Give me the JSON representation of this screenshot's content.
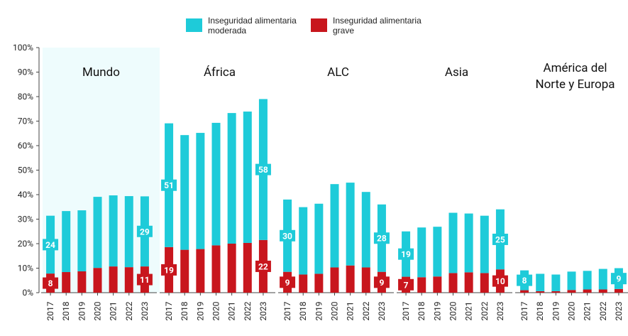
{
  "chart_data": {
    "type": "bar",
    "stacked": true,
    "ylim": [
      0,
      100
    ],
    "yticks": [
      {
        "value": 0,
        "label": "0%"
      },
      {
        "value": 10,
        "label": "10%"
      },
      {
        "value": 20,
        "label": "20%"
      },
      {
        "value": 30,
        "label": "30%"
      },
      {
        "value": 40,
        "label": "40%"
      },
      {
        "value": 50,
        "label": "50%"
      },
      {
        "value": 60,
        "label": "60%"
      },
      {
        "value": 70,
        "label": "70%"
      },
      {
        "value": 80,
        "label": "80%"
      },
      {
        "value": 90,
        "label": "90%"
      },
      {
        "value": 100,
        "label": "100%"
      }
    ],
    "series": [
      {
        "name": "Inseguridad alimentaria moderada",
        "color": "#1ecbd9"
      },
      {
        "name": "Inseguridad alimentaria grave",
        "color": "#c8161d"
      }
    ],
    "panels": [
      {
        "title": [
          "Mundo"
        ],
        "highlight": true,
        "categories": [
          "2017",
          "2018",
          "2019",
          "2020",
          "2021",
          "2022",
          "2023"
        ],
        "series": [
          {
            "values": [
              23.6,
              24.9,
              24.9,
              29.0,
              29.0,
              29.0,
              28.6
            ],
            "value_labels": [
              "24",
              null,
              null,
              null,
              null,
              null,
              "29"
            ]
          },
          {
            "values": [
              7.8,
              8.4,
              8.7,
              10.1,
              10.7,
              10.4,
              10.7
            ],
            "value_labels": [
              "8",
              null,
              null,
              null,
              null,
              null,
              "11"
            ]
          }
        ]
      },
      {
        "title": [
          "África"
        ],
        "highlight": false,
        "categories": [
          "2017",
          "2018",
          "2019",
          "2020",
          "2021",
          "2022",
          "2023"
        ],
        "series": [
          {
            "values": [
              50.5,
              46.8,
              47.4,
              50.0,
              53.3,
              53.6,
              57.5
            ],
            "value_labels": [
              "51",
              null,
              null,
              null,
              null,
              null,
              "58"
            ]
          },
          {
            "values": [
              18.6,
              17.5,
              17.8,
              19.3,
              20.0,
              20.3,
              21.5
            ],
            "value_labels": [
              "19",
              null,
              null,
              null,
              null,
              null,
              "22"
            ]
          }
        ]
      },
      {
        "title": [
          "ALC"
        ],
        "highlight": false,
        "categories": [
          "2017",
          "2018",
          "2019",
          "2020",
          "2021",
          "2022",
          "2023"
        ],
        "series": [
          {
            "values": [
              29.5,
              27.5,
              28.6,
              34.0,
              33.8,
              30.8,
              27.5
            ],
            "value_labels": [
              "30",
              null,
              null,
              null,
              null,
              null,
              "28"
            ]
          },
          {
            "values": [
              8.5,
              7.4,
              7.7,
              10.3,
              11.1,
              10.3,
              8.5
            ],
            "value_labels": [
              "9",
              null,
              null,
              null,
              null,
              null,
              "9"
            ]
          }
        ]
      },
      {
        "title": [
          "Asia"
        ],
        "highlight": false,
        "categories": [
          "2017",
          "2018",
          "2019",
          "2020",
          "2021",
          "2022",
          "2023"
        ],
        "series": [
          {
            "values": [
              18.5,
              20.3,
              20.3,
              24.6,
              24.0,
              23.4,
              24.5
            ],
            "value_labels": [
              "19",
              null,
              null,
              null,
              null,
              null,
              "25"
            ]
          },
          {
            "values": [
              6.5,
              6.3,
              6.6,
              8.0,
              8.3,
              8.0,
              9.5
            ],
            "value_labels": [
              "7",
              null,
              null,
              null,
              null,
              null,
              "10"
            ]
          }
        ]
      },
      {
        "title": [
          "América del",
          "Norte y Europa"
        ],
        "highlight": false,
        "categories": [
          "2017",
          "2018",
          "2019",
          "2020",
          "2021",
          "2022",
          "2023"
        ],
        "series": [
          {
            "values": [
              8.1,
              7.1,
              6.8,
              7.5,
              7.6,
              8.4,
              8.5
            ],
            "value_labels": [
              "8",
              null,
              null,
              null,
              null,
              null,
              "9"
            ]
          },
          {
            "values": [
              1.0,
              0.6,
              0.6,
              1.1,
              1.3,
              1.3,
              1.5
            ],
            "value_labels": [
              null,
              null,
              null,
              null,
              null,
              null,
              null
            ]
          }
        ]
      }
    ]
  }
}
